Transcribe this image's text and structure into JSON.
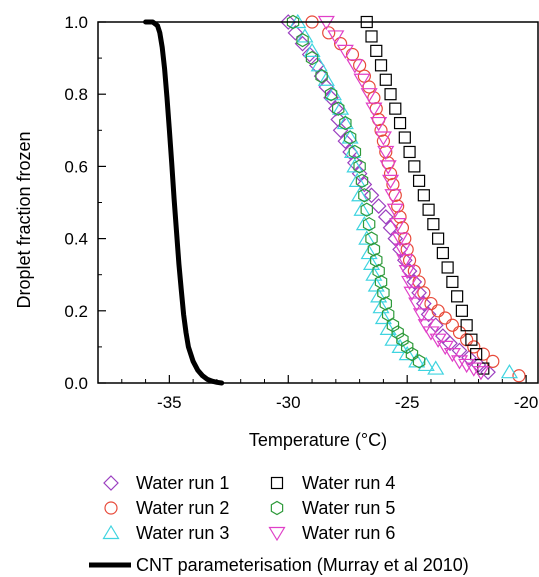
{
  "chart_data": {
    "type": "scatter",
    "xlabel": "Temperature (°C)",
    "ylabel": "Droplet fraction frozen",
    "xlim": [
      -38,
      -19.5
    ],
    "ylim": [
      0,
      1.0
    ],
    "xticks": [
      -35,
      -30,
      -25,
      -20
    ],
    "yticks": [
      0.0,
      0.2,
      0.4,
      0.6,
      0.8,
      1.0
    ],
    "xtick_labels": [
      "-35",
      "-30",
      "-25",
      "-20"
    ],
    "ytick_labels": [
      "0.0",
      "0.2",
      "0.4",
      "0.6",
      "0.8",
      "1.0"
    ],
    "grid": false,
    "legend_position": "bottom",
    "series": [
      {
        "name": "Water run 1",
        "marker": "diamond",
        "color": "#9B3FC0",
        "x": [
          -30.0,
          -29.7,
          -29.4,
          -29.1,
          -28.8,
          -28.6,
          -28.4,
          -28.2,
          -28.0,
          -27.9,
          -27.8,
          -27.6,
          -27.4,
          -27.2,
          -27.0,
          -26.8,
          -26.5,
          -26.2,
          -25.9,
          -25.7,
          -25.5,
          -25.3,
          -25.1,
          -24.9,
          -24.7,
          -24.5,
          -24.3,
          -24.1,
          -23.8,
          -23.5,
          -23.2,
          -22.8,
          -22.4,
          -22.0,
          -21.6
        ],
        "y": [
          1.0,
          0.97,
          0.94,
          0.91,
          0.88,
          0.85,
          0.82,
          0.79,
          0.76,
          0.73,
          0.7,
          0.67,
          0.64,
          0.61,
          0.58,
          0.55,
          0.52,
          0.49,
          0.46,
          0.43,
          0.4,
          0.37,
          0.34,
          0.31,
          0.28,
          0.25,
          0.22,
          0.19,
          0.16,
          0.13,
          0.11,
          0.09,
          0.07,
          0.05,
          0.03
        ]
      },
      {
        "name": "Water run 2",
        "marker": "circle",
        "color": "#E84A3A",
        "x": [
          -29.0,
          -28.3,
          -27.8,
          -27.3,
          -27.0,
          -26.8,
          -26.6,
          -26.4,
          -26.3,
          -26.2,
          -26.1,
          -26.0,
          -25.9,
          -25.8,
          -25.7,
          -25.6,
          -25.5,
          -25.4,
          -25.3,
          -25.2,
          -25.1,
          -25.0,
          -24.9,
          -24.7,
          -24.5,
          -24.3,
          -24.0,
          -23.7,
          -23.4,
          -23.1,
          -22.8,
          -22.5,
          -22.2,
          -21.8,
          -21.4,
          -20.3
        ],
        "y": [
          1.0,
          0.97,
          0.94,
          0.91,
          0.88,
          0.85,
          0.82,
          0.79,
          0.76,
          0.73,
          0.7,
          0.67,
          0.64,
          0.61,
          0.58,
          0.55,
          0.52,
          0.49,
          0.46,
          0.43,
          0.4,
          0.37,
          0.34,
          0.31,
          0.28,
          0.25,
          0.22,
          0.2,
          0.18,
          0.16,
          0.14,
          0.12,
          0.1,
          0.08,
          0.06,
          0.02
        ]
      },
      {
        "name": "Water run 3",
        "marker": "triangle-up",
        "color": "#3FD4E0",
        "x": [
          -29.6,
          -29.3,
          -29.0,
          -28.7,
          -28.4,
          -28.1,
          -27.8,
          -27.6,
          -27.4,
          -27.3,
          -27.2,
          -27.1,
          -27.0,
          -26.9,
          -26.8,
          -26.7,
          -26.6,
          -26.5,
          -26.4,
          -26.3,
          -26.2,
          -26.1,
          -26.0,
          -25.8,
          -25.6,
          -25.3,
          -25.0,
          -24.6,
          -24.2,
          -23.8,
          -20.7
        ],
        "y": [
          1.0,
          0.96,
          0.92,
          0.88,
          0.84,
          0.8,
          0.76,
          0.72,
          0.68,
          0.64,
          0.6,
          0.56,
          0.52,
          0.48,
          0.44,
          0.4,
          0.36,
          0.33,
          0.3,
          0.27,
          0.24,
          0.21,
          0.18,
          0.15,
          0.12,
          0.1,
          0.08,
          0.06,
          0.05,
          0.04,
          0.03
        ]
      },
      {
        "name": "Water run 4",
        "marker": "square",
        "color": "#000000",
        "x": [
          -26.7,
          -26.5,
          -26.3,
          -26.1,
          -25.9,
          -25.7,
          -25.5,
          -25.3,
          -25.1,
          -24.9,
          -24.7,
          -24.5,
          -24.3,
          -24.1,
          -23.9,
          -23.7,
          -23.5,
          -23.3,
          -23.1,
          -22.9,
          -22.7,
          -22.5,
          -22.3,
          -22.1,
          -21.8
        ],
        "y": [
          1.0,
          0.96,
          0.92,
          0.88,
          0.84,
          0.8,
          0.76,
          0.72,
          0.68,
          0.64,
          0.6,
          0.56,
          0.52,
          0.48,
          0.44,
          0.4,
          0.36,
          0.32,
          0.28,
          0.24,
          0.2,
          0.16,
          0.12,
          0.08,
          0.04
        ]
      },
      {
        "name": "Water run 5",
        "marker": "hexagon",
        "color": "#2E9A3A",
        "x": [
          -29.8,
          -29.4,
          -29.0,
          -28.6,
          -28.2,
          -27.9,
          -27.6,
          -27.4,
          -27.2,
          -27.0,
          -26.9,
          -26.8,
          -26.7,
          -26.6,
          -26.5,
          -26.4,
          -26.3,
          -26.2,
          -26.1,
          -26.0,
          -25.9,
          -25.8,
          -25.6,
          -25.4,
          -25.2,
          -25.0,
          -24.8,
          -24.5
        ],
        "y": [
          1.0,
          0.95,
          0.9,
          0.85,
          0.8,
          0.76,
          0.72,
          0.68,
          0.64,
          0.6,
          0.56,
          0.52,
          0.48,
          0.44,
          0.4,
          0.37,
          0.34,
          0.31,
          0.28,
          0.25,
          0.22,
          0.19,
          0.16,
          0.14,
          0.12,
          0.1,
          0.08,
          0.06
        ]
      },
      {
        "name": "Water run 6",
        "marker": "triangle-down",
        "color": "#E040C8",
        "x": [
          -28.4,
          -28.0,
          -27.6,
          -27.2,
          -26.9,
          -26.6,
          -26.4,
          -26.2,
          -26.0,
          -25.9,
          -25.8,
          -25.7,
          -25.6,
          -25.5,
          -25.4,
          -25.3,
          -25.2,
          -25.1,
          -25.0,
          -24.9,
          -24.8,
          -24.6,
          -24.4,
          -24.2,
          -24.0,
          -23.7,
          -23.4,
          -23.1,
          -22.8,
          -22.5,
          -22.2,
          -21.9
        ],
        "y": [
          1.0,
          0.96,
          0.92,
          0.88,
          0.84,
          0.8,
          0.76,
          0.72,
          0.68,
          0.64,
          0.6,
          0.56,
          0.52,
          0.48,
          0.44,
          0.4,
          0.37,
          0.34,
          0.31,
          0.28,
          0.25,
          0.22,
          0.19,
          0.16,
          0.14,
          0.12,
          0.1,
          0.08,
          0.06,
          0.05,
          0.04,
          0.03
        ]
      },
      {
        "name": "CNT parameterisation (Murray et al 2010)",
        "marker": "line",
        "color": "#000000",
        "x": [
          -36.0,
          -35.7,
          -35.5,
          -35.4,
          -35.3,
          -35.2,
          -35.1,
          -35.0,
          -34.9,
          -34.8,
          -34.7,
          -34.6,
          -34.5,
          -34.4,
          -34.3,
          -34.2,
          -34.0,
          -33.8,
          -33.6,
          -33.4,
          -33.2,
          -33.0,
          -32.8
        ],
        "y": [
          1.0,
          1.0,
          0.99,
          0.97,
          0.93,
          0.87,
          0.79,
          0.7,
          0.61,
          0.51,
          0.42,
          0.33,
          0.26,
          0.19,
          0.14,
          0.1,
          0.06,
          0.035,
          0.02,
          0.01,
          0.005,
          0.002,
          0.0
        ]
      }
    ]
  }
}
